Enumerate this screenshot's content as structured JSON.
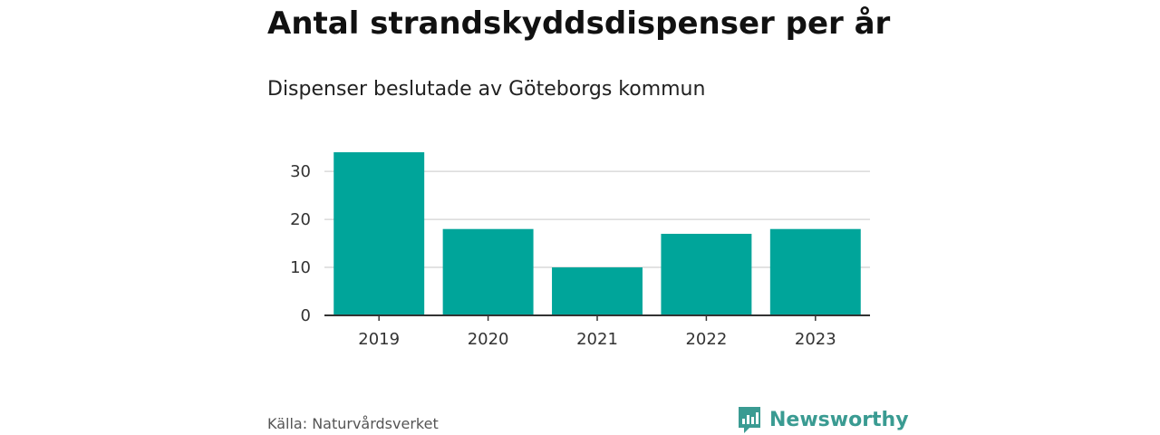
{
  "header": {
    "title": "Antal strandskyddsdispenser per år",
    "subtitle": "Dispenser beslutade av Göteborgs kommun"
  },
  "chart_data": {
    "type": "bar",
    "categories": [
      "2019",
      "2020",
      "2021",
      "2022",
      "2023"
    ],
    "values": [
      34,
      18,
      10,
      17,
      18
    ],
    "ylim": [
      0,
      34
    ],
    "yticks": [
      0,
      10,
      20,
      30
    ],
    "title": "Antal strandskyddsdispenser per år",
    "subtitle": "Dispenser beslutade av Göteborgs kommun",
    "xlabel": "",
    "ylabel": "",
    "grid": true,
    "bar_color": "#00a59a"
  },
  "footer": {
    "source": "Källa: Naturvårdsverket",
    "brand": "Newsworthy",
    "brand_color": "#3a9b92"
  }
}
